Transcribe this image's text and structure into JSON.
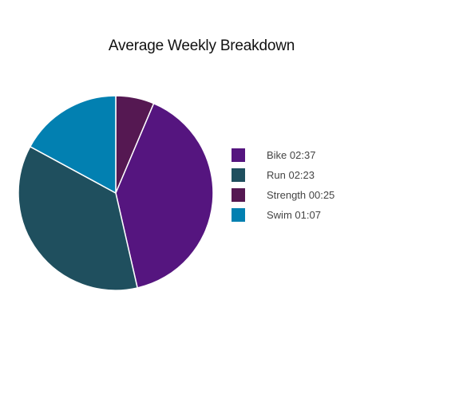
{
  "chart_data": {
    "type": "pie",
    "title": "Average Weekly Breakdown",
    "legend_position": "right",
    "slices": [
      {
        "label": "Bike 02:37",
        "value": 157,
        "color": "#55157f"
      },
      {
        "label": "Run 02:23",
        "value": 143,
        "color": "#1f4f5e"
      },
      {
        "label": "Strength 00:25",
        "value": 25,
        "color": "#551852"
      },
      {
        "label": "Swim 01:07",
        "value": 67,
        "color": "#0280b1"
      }
    ],
    "draw_order": [
      "Strength 00:25",
      "Bike 02:37",
      "Run 02:23",
      "Swim 01:07"
    ]
  }
}
